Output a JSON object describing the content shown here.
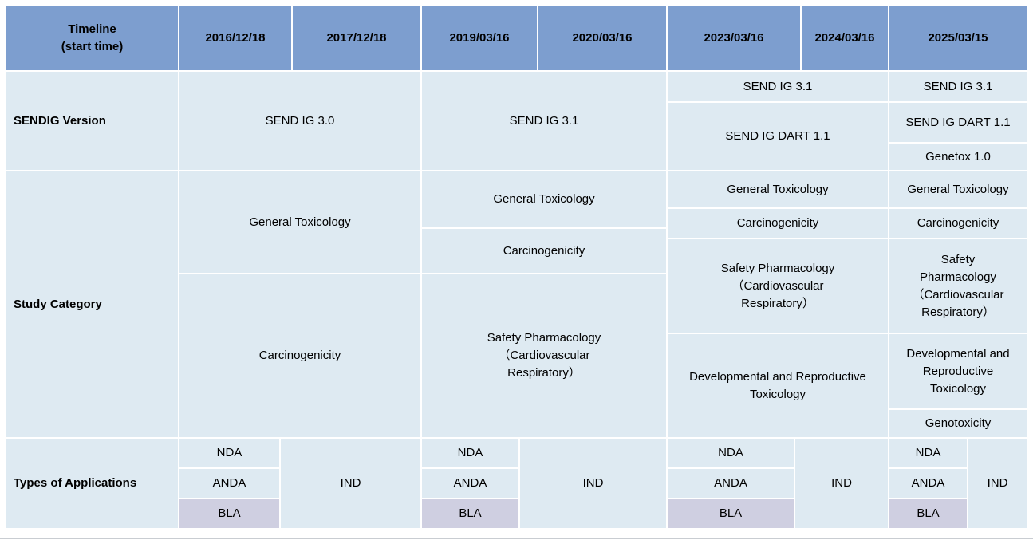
{
  "colors": {
    "header_blue": "#7D9ECF",
    "cell_blue": "#DEEAF2",
    "bla_lavender": "#CFCFE1",
    "gridline": "#FFFFFF",
    "text": "#000000",
    "bottom_line": "#C9CDD2"
  },
  "table": {
    "header": {
      "timeline_label": "Timeline\n(start time)",
      "dates": [
        "2016/12/18",
        "2017/12/18",
        "2019/03/16",
        "2020/03/16",
        "2023/03/16",
        "2024/03/16",
        "2025/03/15"
      ]
    },
    "sendig_version": {
      "label": "SENDIG Version",
      "send_ig_3_0": "SEND IG 3.0",
      "send_ig_3_1": "SEND IG 3.1",
      "g2023_send_ig_3_1": "SEND IG 3.1",
      "g2023_send_ig_dart_1_1": "SEND IG DART 1.1",
      "g2025_send_ig_3_1": "SEND IG 3.1",
      "g2025_send_ig_dart_1_1": "SEND IG DART 1.1",
      "g2025_genetox_1_0": "Genetox 1.0"
    },
    "study_category": {
      "label": "Study Category",
      "g2016_general_toxicology": "General Toxicology",
      "g2016_carcinogenicity": "Carcinogenicity",
      "g2019_general_toxicology": "General Toxicology",
      "g2019_carcinogenicity": "Carcinogenicity",
      "g2019_safety_pharmacology": "Safety Pharmacology\n（Cardiovascular\nRespiratory）",
      "g2023_general_toxicology": "General Toxicology",
      "g2023_carcinogenicity": "Carcinogenicity",
      "g2023_safety_pharmacology": "Safety Pharmacology\n（Cardiovascular\nRespiratory）",
      "g2023_dart": "Developmental and Reproductive\nToxicology",
      "g2025_general_toxicology": "General Toxicology",
      "g2025_carcinogenicity": "Carcinogenicity",
      "g2025_safety_pharmacology": "Safety\nPharmacology\n（Cardiovascular\nRespiratory）",
      "g2025_dart": "Developmental and\nReproductive\nToxicology",
      "g2025_genotoxicity": "Genotoxicity"
    },
    "types_of_applications": {
      "label": "Types of Applications",
      "nda": "NDA",
      "anda": "ANDA",
      "bla": "BLA",
      "ind": "IND"
    }
  }
}
